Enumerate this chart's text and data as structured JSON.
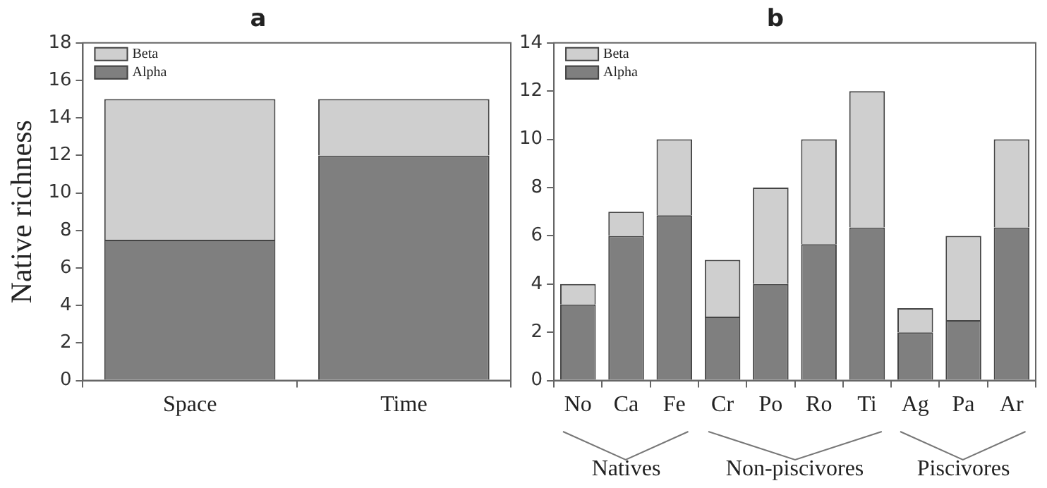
{
  "chart_data": [
    {
      "type": "bar",
      "title": "a",
      "ylabel": "Native richness",
      "categories": [
        "Space",
        "Time"
      ],
      "stacked": true,
      "legend": "top left",
      "grid": false,
      "ylim": [
        0,
        18
      ],
      "yticks": [
        0,
        2,
        4,
        6,
        8,
        10,
        12,
        14,
        16,
        18
      ],
      "series": [
        {
          "name": "Alpha",
          "color": "#7f7f7f",
          "values": [
            7.5,
            12
          ]
        },
        {
          "name": "Beta",
          "color": "#cfcfcf",
          "values": [
            7.5,
            3
          ]
        }
      ]
    },
    {
      "type": "bar",
      "title": "b",
      "categories": [
        "No",
        "Ca",
        "Fe",
        "Cr",
        "Po",
        "Ro",
        "Ti",
        "Ag",
        "Pa",
        "Ar"
      ],
      "stacked": true,
      "legend": "top left",
      "grid": false,
      "ylim": [
        0,
        14
      ],
      "yticks": [
        0,
        2,
        4,
        6,
        8,
        10,
        12,
        14
      ],
      "series": [
        {
          "name": "Alpha",
          "color": "#7f7f7f",
          "values": [
            3.15,
            6,
            6.85,
            2.65,
            4,
            5.65,
            6.35,
            2,
            2.5,
            6.35
          ]
        },
        {
          "name": "Beta",
          "color": "#cfcfcf",
          "values": [
            0.85,
            1,
            3.15,
            2.35,
            4,
            4.35,
            5.65,
            1,
            3.5,
            3.65
          ]
        }
      ],
      "annotations": [
        "Natives",
        "Non-piscivores",
        "Piscivores"
      ]
    }
  ]
}
